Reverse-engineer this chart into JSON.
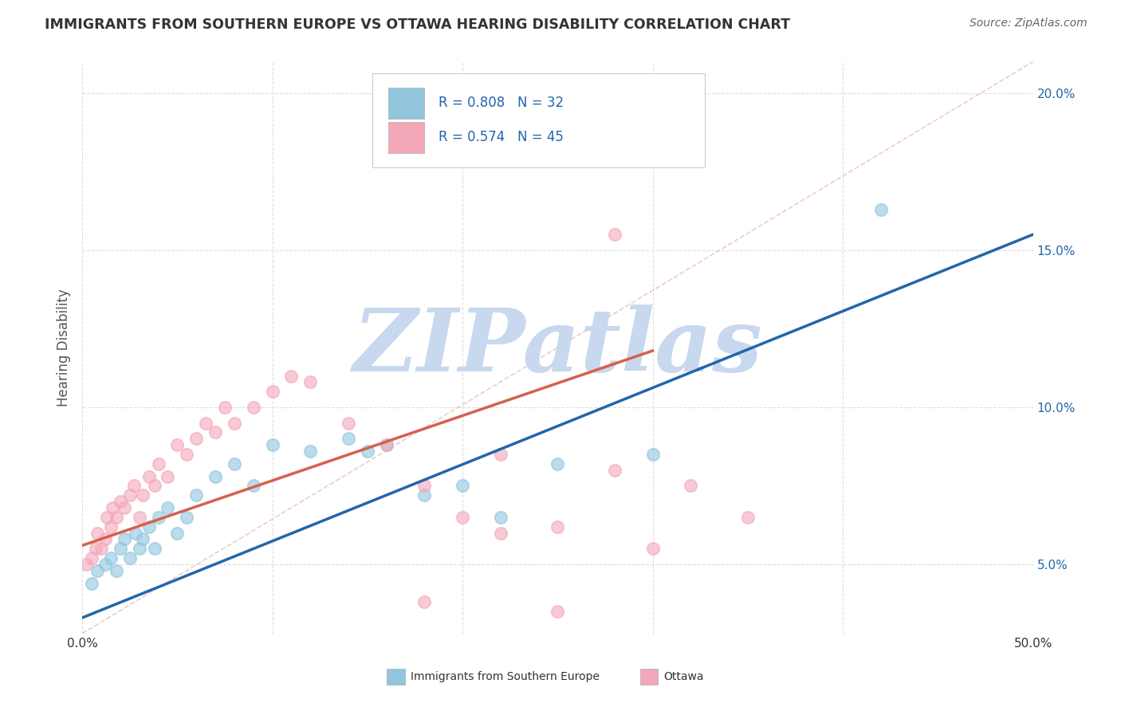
{
  "title": "IMMIGRANTS FROM SOUTHERN EUROPE VS OTTAWA HEARING DISABILITY CORRELATION CHART",
  "source_text": "Source: ZipAtlas.com",
  "ylabel": "Hearing Disability",
  "xlim": [
    0.0,
    0.5
  ],
  "ylim": [
    0.028,
    0.21
  ],
  "xticks": [
    0.0,
    0.1,
    0.2,
    0.3,
    0.4,
    0.5
  ],
  "ytick_values": [
    0.05,
    0.1,
    0.15,
    0.2
  ],
  "ytick_labels": [
    "5.0%",
    "10.0%",
    "15.0%",
    "20.0%"
  ],
  "blue_color": "#92c5de",
  "pink_color": "#f4a7b9",
  "blue_line_color": "#2166ac",
  "pink_line_color": "#d6604d",
  "legend_R_blue": "0.808",
  "legend_N_blue": "32",
  "legend_R_pink": "0.574",
  "legend_N_pink": "45",
  "blue_scatter_x": [
    0.005,
    0.008,
    0.012,
    0.015,
    0.018,
    0.02,
    0.022,
    0.025,
    0.028,
    0.03,
    0.032,
    0.035,
    0.038,
    0.04,
    0.045,
    0.05,
    0.055,
    0.06,
    0.07,
    0.08,
    0.09,
    0.1,
    0.12,
    0.14,
    0.15,
    0.16,
    0.18,
    0.2,
    0.22,
    0.25,
    0.3,
    0.42
  ],
  "blue_scatter_y": [
    0.044,
    0.048,
    0.05,
    0.052,
    0.048,
    0.055,
    0.058,
    0.052,
    0.06,
    0.055,
    0.058,
    0.062,
    0.055,
    0.065,
    0.068,
    0.06,
    0.065,
    0.072,
    0.078,
    0.082,
    0.075,
    0.088,
    0.086,
    0.09,
    0.086,
    0.088,
    0.072,
    0.075,
    0.065,
    0.082,
    0.085,
    0.163
  ],
  "pink_scatter_x": [
    0.002,
    0.005,
    0.007,
    0.008,
    0.01,
    0.012,
    0.013,
    0.015,
    0.016,
    0.018,
    0.02,
    0.022,
    0.025,
    0.027,
    0.03,
    0.032,
    0.035,
    0.038,
    0.04,
    0.045,
    0.05,
    0.055,
    0.06,
    0.065,
    0.07,
    0.075,
    0.08,
    0.09,
    0.1,
    0.11,
    0.12,
    0.14,
    0.16,
    0.18,
    0.2,
    0.22,
    0.25,
    0.28,
    0.3,
    0.32,
    0.35,
    0.28,
    0.22,
    0.18,
    0.25
  ],
  "pink_scatter_y": [
    0.05,
    0.052,
    0.055,
    0.06,
    0.055,
    0.058,
    0.065,
    0.062,
    0.068,
    0.065,
    0.07,
    0.068,
    0.072,
    0.075,
    0.065,
    0.072,
    0.078,
    0.075,
    0.082,
    0.078,
    0.088,
    0.085,
    0.09,
    0.095,
    0.092,
    0.1,
    0.095,
    0.1,
    0.105,
    0.11,
    0.108,
    0.095,
    0.088,
    0.075,
    0.065,
    0.085,
    0.062,
    0.155,
    0.055,
    0.075,
    0.065,
    0.08,
    0.06,
    0.038,
    0.035
  ],
  "blue_line_x": [
    0.0,
    0.5
  ],
  "blue_line_y": [
    0.033,
    0.155
  ],
  "pink_line_x": [
    0.0,
    0.3
  ],
  "pink_line_y": [
    0.056,
    0.118
  ],
  "diag_line_x": [
    0.0,
    0.5
  ],
  "diag_line_y": [
    0.028,
    0.21
  ],
  "background_color": "#ffffff",
  "grid_color": "#dddddd",
  "watermark_text": "ZIPatlas",
  "watermark_color": "#c8d8ee",
  "title_color": "#333333",
  "source_color": "#666666",
  "axis_label_color": "#555555",
  "legend_text_color": "#2166ac"
}
